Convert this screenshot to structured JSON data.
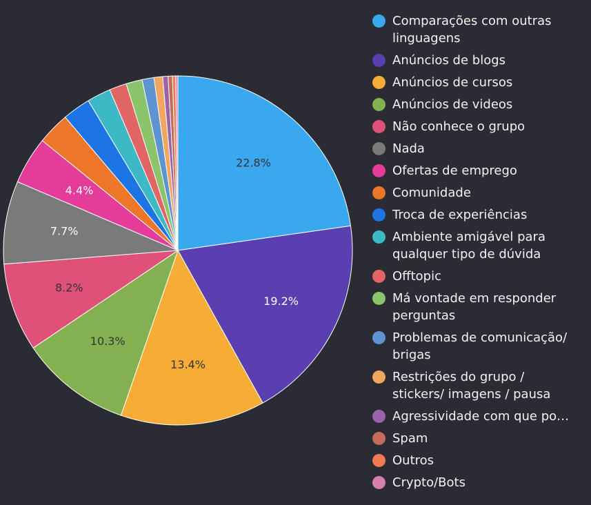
{
  "chart_data": {
    "type": "pie",
    "legend_position": "right",
    "categories": [
      "Comparações com outras linguagens",
      "Anúncios de blogs",
      "Anúncios de cursos",
      "Anúncios de videos",
      "Não conhece o grupo",
      "Nada",
      "Ofertas de emprego",
      "Comunidade",
      "Troca de experiências",
      "Ambiente amigável para qualquer tipo de dúvida",
      "Offtopic",
      "Má vontade em responder perguntas",
      "Problemas de comunicação/ brigas",
      "Restrições do grupo / stickers/ imagens / pausa",
      "Agressividade com que po…",
      "Spam",
      "Outros",
      "Crypto/Bots"
    ],
    "values": [
      22.8,
      19.2,
      13.4,
      10.3,
      8.2,
      7.7,
      4.4,
      3.0,
      2.6,
      2.2,
      1.6,
      1.5,
      1.1,
      0.8,
      0.5,
      0.4,
      0.3,
      0.2
    ],
    "data_labels": [
      "22.8%",
      "19.2%",
      "13.4%",
      "10.3%",
      "8.2%",
      "7.7%",
      "4.4%",
      "",
      "",
      "",
      "",
      "",
      "",
      "",
      "",
      "",
      "",
      ""
    ],
    "colors": [
      "#3aa8ee",
      "#5a3fb0",
      "#f7ac36",
      "#84b14f",
      "#e0517a",
      "#7a7a7a",
      "#e33c99",
      "#ee7628",
      "#1d74e5",
      "#3db8c5",
      "#e26566",
      "#8cc46c",
      "#5e95d1",
      "#f2a760",
      "#9a63aa",
      "#c46b5a",
      "#f07a53",
      "#d97fb0"
    ],
    "label_colors": [
      "#333333",
      "#ffffff",
      "#333333",
      "#333333",
      "#333333",
      "#ffffff",
      "#ffffff",
      "#ffffff",
      "#ffffff",
      "#ffffff",
      "#ffffff",
      "#ffffff",
      "#ffffff",
      "#ffffff",
      "#ffffff",
      "#ffffff",
      "#ffffff",
      "#ffffff"
    ]
  }
}
